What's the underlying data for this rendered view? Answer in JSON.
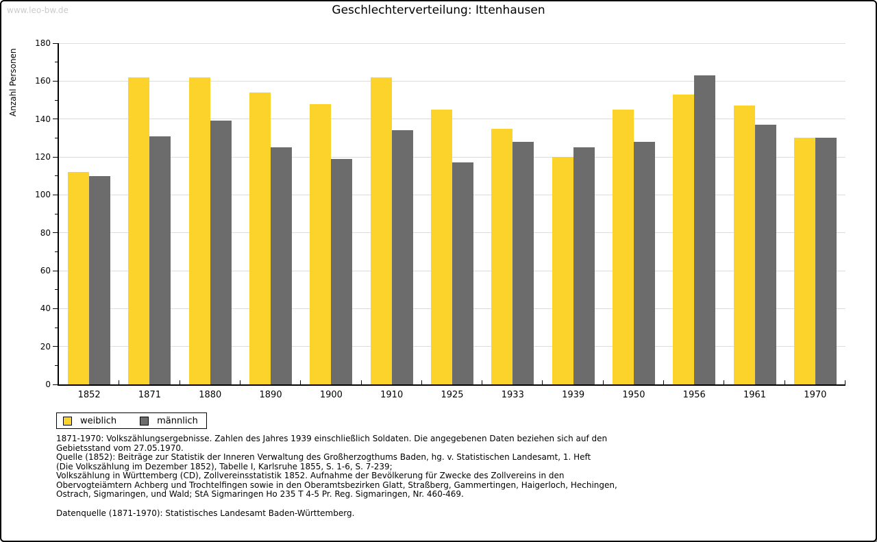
{
  "watermark": "www.leo-bw.de",
  "header": {
    "title": "Geschlechterverteilung: Ittenhausen"
  },
  "chart_data": {
    "type": "bar",
    "title": "Geschlechterverteilung: Ittenhausen",
    "xlabel": "",
    "ylabel": "Anzahl Personen",
    "categories": [
      "1852",
      "1871",
      "1880",
      "1890",
      "1900",
      "1910",
      "1925",
      "1933",
      "1939",
      "1950",
      "1956",
      "1961",
      "1970"
    ],
    "series": [
      {
        "name": "weiblich",
        "color": "#fbd32b",
        "values": [
          112,
          162,
          162,
          154,
          148,
          162,
          145,
          135,
          120,
          145,
          153,
          147,
          130
        ]
      },
      {
        "name": "männlich",
        "color": "#6c6c6c",
        "values": [
          110,
          131,
          139,
          125,
          119,
          134,
          117,
          128,
          125,
          128,
          163,
          137,
          130
        ]
      }
    ],
    "ylim": [
      0,
      180
    ],
    "yticks": [
      0,
      20,
      40,
      60,
      80,
      100,
      120,
      140,
      160,
      180
    ],
    "minor_ytick_step": 10,
    "grid": true,
    "legend_position": "bottom-left"
  },
  "legend": {
    "items": [
      {
        "label": "weiblich",
        "color": "#fbd32b"
      },
      {
        "label": "männlich",
        "color": "#6c6c6c"
      }
    ]
  },
  "footnotes": {
    "paragraph1_lines": [
      "1871-1970: Volkszählungsergebnisse. Zahlen des Jahres 1939 einschließlich Soldaten. Die angegebenen Daten beziehen sich auf den",
      "Gebietsstand vom 27.05.1970.",
      "Quelle (1852): Beiträge zur Statistik der Inneren Verwaltung des Großherzogthums Baden, hg. v. Statistischen Landesamt, 1. Heft",
      "(Die Volkszählung im Dezember 1852), Tabelle I, Karlsruhe 1855, S. 1-6, S. 7-239;",
      "Volkszählung in Württemberg (CD), Zollvereinsstatistik 1852. Aufnahme der Bevölkerung für Zwecke des Zollvereins in den",
      "Obervogteiämtern Achberg und Trochtelfingen sowie in den Oberamtsbezirken Glatt, Straßberg, Gammertingen, Haigerloch, Hechingen,",
      "Ostrach, Sigmaringen, und Wald; StA Sigmaringen Ho 235 T 4-5 Pr. Reg. Sigmaringen, Nr. 460-469."
    ],
    "paragraph2": "Datenquelle (1871-1970): Statistisches Landesamt Baden-Württemberg."
  },
  "colors": {
    "grid": "#dcdcdc",
    "axis": "#000000",
    "watermark": "#cbcbcb"
  }
}
